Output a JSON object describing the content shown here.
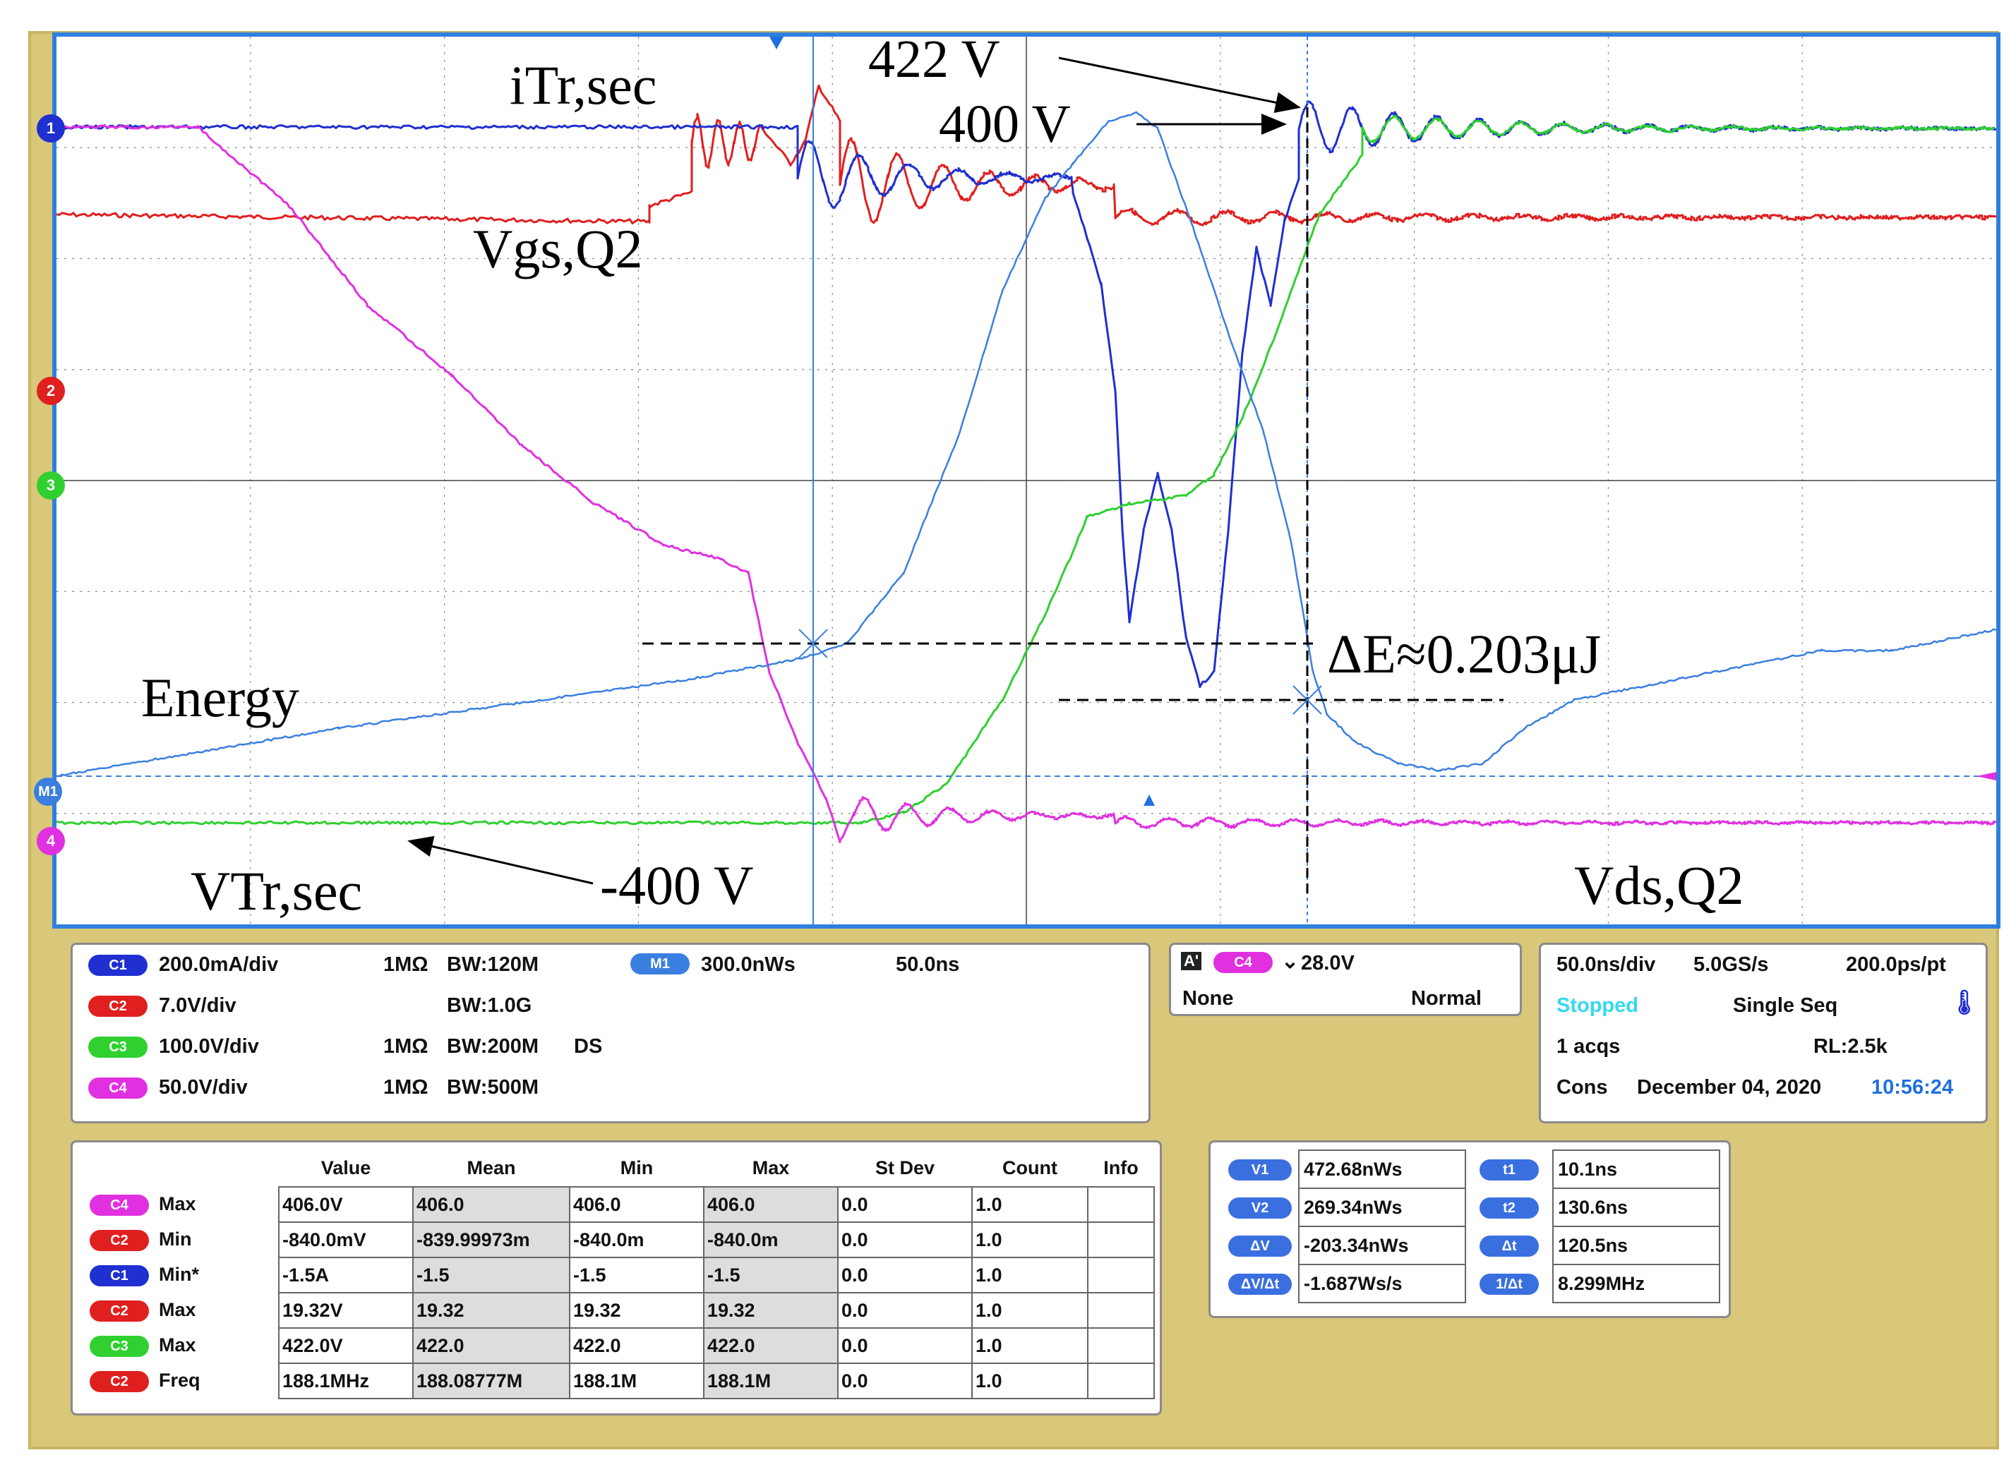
{
  "colors": {
    "ch1": "#1f2fd0",
    "ch2": "#e01f1f",
    "ch3": "#2fd02f",
    "ch4": "#e030e0",
    "math": "#3a7fe0",
    "grid": "#888888",
    "screen_border": "#2f7fe0",
    "bezel": "#d9c77a"
  },
  "channel_markers": [
    {
      "label": "1",
      "color": "#1f2fd0",
      "icon": "ch1-ground-marker-icon"
    },
    {
      "label": "2",
      "color": "#e01f1f",
      "icon": "ch2-ground-marker-icon"
    },
    {
      "label": "3",
      "color": "#2fd02f",
      "icon": "ch3-ground-marker-icon"
    },
    {
      "label": "M1",
      "color": "#3a7fe0",
      "icon": "math-ground-marker-icon"
    },
    {
      "label": "4",
      "color": "#e030e0",
      "icon": "ch4-ground-marker-icon"
    }
  ],
  "annotations": {
    "itr": "iTr,sec",
    "vgs": "Vgs,Q2",
    "v422": "422 V",
    "v400": "400 V",
    "energy": "Energy",
    "delta_e": "ΔE≈0.203μJ",
    "vtr": "VTr,sec",
    "vneg400": "-400 V",
    "vds": "Vds,Q2"
  },
  "vertical": {
    "channels": [
      {
        "badge": "C1",
        "color": "#1f2fd0",
        "scale": "200.0mA/div",
        "imp": "1MΩ",
        "bw": "BW:120M",
        "extra": ""
      },
      {
        "badge": "C2",
        "color": "#e01f1f",
        "scale": "7.0V/div",
        "imp": "",
        "bw": "BW:1.0G",
        "extra": ""
      },
      {
        "badge": "C3",
        "color": "#2fd02f",
        "scale": "100.0V/div",
        "imp": "1MΩ",
        "bw": "BW:200M",
        "extra": "DS"
      },
      {
        "badge": "C4",
        "color": "#e030e0",
        "scale": "50.0V/div",
        "imp": "1MΩ",
        "bw": "BW:500M",
        "extra": ""
      }
    ],
    "math": {
      "badge": "M1",
      "scale": "300.0nWs",
      "time": "50.0ns"
    }
  },
  "trigger": {
    "badge_a": "A'",
    "badge_src": "C4",
    "level": "28.0V",
    "coupling": "None",
    "mode": "Normal"
  },
  "acquisition": {
    "timebase": "50.0ns/div",
    "rate": "5.0GS/s",
    "resolution": "200.0ps/pt",
    "state": "Stopped",
    "seq": "Single Seq",
    "acqs": "1 acqs",
    "rl": "RL:2.5k",
    "cons": "Cons",
    "date": "December 04, 2020",
    "time": "10:56:24"
  },
  "measurements": {
    "headers": [
      "Value",
      "Mean",
      "Min",
      "Max",
      "St Dev",
      "Count",
      "Info"
    ],
    "rows": [
      {
        "badge": "C4",
        "color": "#e030e0",
        "type": "Max",
        "cells": [
          "406.0V",
          "406.0",
          "406.0",
          "406.0",
          "0.0",
          "1.0",
          ""
        ]
      },
      {
        "badge": "C2",
        "color": "#e01f1f",
        "type": "Min",
        "cells": [
          "-840.0mV",
          "-839.99973m",
          "-840.0m",
          "-840.0m",
          "0.0",
          "1.0",
          ""
        ]
      },
      {
        "badge": "C1",
        "color": "#1f2fd0",
        "type": "Min*",
        "cells": [
          "-1.5A",
          "-1.5",
          "-1.5",
          "-1.5",
          "0.0",
          "1.0",
          ""
        ]
      },
      {
        "badge": "C2",
        "color": "#e01f1f",
        "type": "Max",
        "cells": [
          "19.32V",
          "19.32",
          "19.32",
          "19.32",
          "0.0",
          "1.0",
          ""
        ]
      },
      {
        "badge": "C3",
        "color": "#2fd02f",
        "type": "Max",
        "cells": [
          "422.0V",
          "422.0",
          "422.0",
          "422.0",
          "0.0",
          "1.0",
          ""
        ]
      },
      {
        "badge": "C2",
        "color": "#e01f1f",
        "type": "Freq",
        "cells": [
          "188.1MHz",
          "188.08777M",
          "188.1M",
          "188.1M",
          "0.0",
          "1.0",
          ""
        ]
      }
    ]
  },
  "cursors": [
    {
      "vbadge": "V1",
      "vval": "472.68nWs",
      "tbadge": "t1",
      "tval": "10.1ns"
    },
    {
      "vbadge": "V2",
      "vval": "269.34nWs",
      "tbadge": "t2",
      "tval": "130.6ns"
    },
    {
      "vbadge": "ΔV",
      "vval": "-203.34nWs",
      "tbadge": "Δt",
      "tval": "120.5ns"
    },
    {
      "vbadge": "ΔV/Δt",
      "vval": "-1.687Ws/s",
      "tbadge": "1/Δt",
      "tval": "8.299MHz"
    }
  ]
}
